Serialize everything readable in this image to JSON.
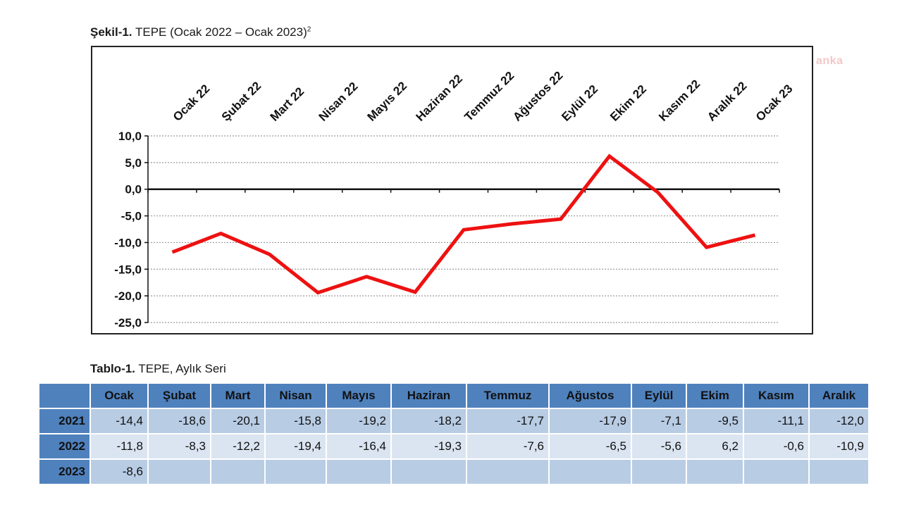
{
  "watermark": "anka",
  "figure": {
    "label": "Şekil-1.",
    "title": "TEPE (Ocak 2022 – Ocak 2023)",
    "footnote": "2"
  },
  "chart_data": {
    "type": "line",
    "categories": [
      "Ocak 22",
      "Şubat 22",
      "Mart 22",
      "Nisan 22",
      "Mayıs 22",
      "Haziran 22",
      "Temmuz 22",
      "Ağustos 22",
      "Eylül 22",
      "Ekim 22",
      "Kasım 22",
      "Aralık 22",
      "Ocak 23"
    ],
    "series": [
      {
        "values": [
          -11.8,
          -8.3,
          -12.2,
          -19.4,
          -16.4,
          -19.3,
          -7.6,
          -6.5,
          -5.6,
          6.2,
          -0.6,
          -10.9,
          -8.6
        ],
        "color": "#ee1111"
      }
    ],
    "ylim": [
      -25,
      10
    ],
    "yticks": [
      "10,0",
      "5,0",
      "0,0",
      "-5,0",
      "-10,0",
      "-15,0",
      "-20,0",
      "-25,0"
    ],
    "ytick_values": [
      10,
      5,
      0,
      -5,
      -10,
      -15,
      -20,
      -25
    ],
    "grid": "dotted horizontal",
    "x_labels_position": "top, rotated",
    "zero_line_color": "#111111"
  },
  "table": {
    "label": "Tablo-1.",
    "title": "TEPE, Aylık Seri",
    "header_color": "#4f81bd",
    "row_colors": [
      "#b8cce4",
      "#dbe5f1"
    ],
    "months": [
      "Ocak",
      "Şubat",
      "Mart",
      "Nisan",
      "Mayıs",
      "Haziran",
      "Temmuz",
      "Ağustos",
      "Eylül",
      "Ekim",
      "Kasım",
      "Aralık"
    ],
    "rows": [
      {
        "year": "2021",
        "values": [
          "-14,4",
          "-18,6",
          "-20,1",
          "-15,8",
          "-19,2",
          "-18,2",
          "-17,7",
          "-17,9",
          "-7,1",
          "-9,5",
          "-11,1",
          "-12,0"
        ]
      },
      {
        "year": "2022",
        "values": [
          "-11,8",
          "-8,3",
          "-12,2",
          "-19,4",
          "-16,4",
          "-19,3",
          "-7,6",
          "-6,5",
          "-5,6",
          "6,2",
          "-0,6",
          "-10,9"
        ]
      },
      {
        "year": "2023",
        "values": [
          "-8,6",
          "",
          "",
          "",
          "",
          "",
          "",
          "",
          "",
          "",
          "",
          ""
        ]
      }
    ]
  }
}
